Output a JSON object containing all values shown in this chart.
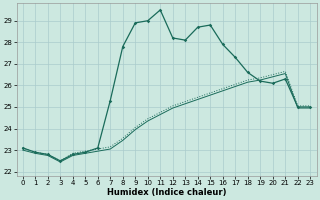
{
  "title": "",
  "xlabel": "Humidex (Indice chaleur)",
  "bg_color": "#cce8e0",
  "grid_color": "#aacccc",
  "line_color": "#1a6b5a",
  "xlim": [
    -0.5,
    23.5
  ],
  "ylim": [
    21.8,
    29.8
  ],
  "yticks": [
    22,
    23,
    24,
    25,
    26,
    27,
    28,
    29
  ],
  "xticks": [
    0,
    1,
    2,
    3,
    4,
    5,
    6,
    7,
    8,
    9,
    10,
    11,
    12,
    13,
    14,
    15,
    16,
    17,
    18,
    19,
    20,
    21,
    22,
    23
  ],
  "line_main_x": [
    0,
    1,
    2,
    3,
    4,
    5,
    6,
    7,
    8,
    9,
    10,
    11,
    12,
    13,
    14,
    15,
    16,
    17,
    18,
    19,
    20,
    21,
    22,
    23
  ],
  "line_main_y": [
    23.1,
    22.9,
    22.8,
    22.5,
    22.8,
    22.9,
    23.1,
    25.3,
    27.8,
    28.9,
    29.0,
    29.5,
    28.2,
    28.1,
    28.7,
    28.8,
    27.9,
    27.3,
    26.6,
    26.2,
    26.1,
    26.3,
    25.0,
    25.0
  ],
  "line_upper_x": [
    0,
    1,
    2,
    3,
    4,
    5,
    6,
    7,
    8,
    9,
    10,
    11,
    12,
    13,
    14,
    15,
    16,
    17,
    18,
    19,
    20,
    21,
    22,
    23
  ],
  "line_upper_y": [
    23.1,
    22.9,
    22.8,
    22.5,
    22.85,
    22.95,
    23.05,
    23.15,
    23.55,
    24.05,
    24.45,
    24.75,
    25.05,
    25.25,
    25.45,
    25.65,
    25.85,
    26.05,
    26.25,
    26.35,
    26.5,
    26.65,
    25.05,
    25.05
  ],
  "line_lower_x": [
    0,
    1,
    2,
    3,
    4,
    5,
    6,
    7,
    8,
    9,
    10,
    11,
    12,
    13,
    14,
    15,
    16,
    17,
    18,
    19,
    20,
    21,
    22,
    23
  ],
  "line_lower_y": [
    23.0,
    22.85,
    22.75,
    22.45,
    22.75,
    22.85,
    22.95,
    23.05,
    23.45,
    23.95,
    24.35,
    24.65,
    24.95,
    25.15,
    25.35,
    25.55,
    25.75,
    25.95,
    26.15,
    26.25,
    26.4,
    26.55,
    24.95,
    24.95
  ]
}
